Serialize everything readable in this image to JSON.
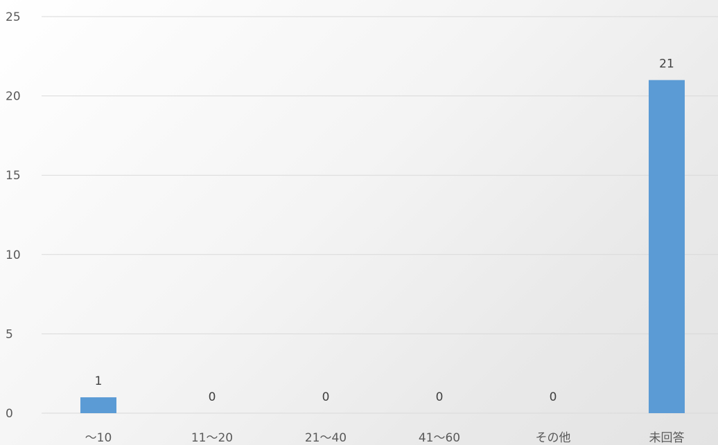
{
  "chart_data": {
    "type": "bar",
    "title": "",
    "xlabel": "",
    "ylabel": "",
    "categories": [
      "～10",
      "11～20",
      "21～40",
      "41～60",
      "その他",
      "未回答"
    ],
    "values": [
      1,
      0,
      0,
      0,
      0,
      21
    ],
    "ylim": [
      0,
      25
    ],
    "yticks": [
      0,
      5,
      10,
      15,
      20,
      25
    ],
    "data_labels": true,
    "grid": true,
    "legend": "none",
    "colors": {
      "bar": "#5b9bd5",
      "grid": "#d9d9d9",
      "tick_text": "#595959",
      "label_text": "#404040"
    }
  }
}
